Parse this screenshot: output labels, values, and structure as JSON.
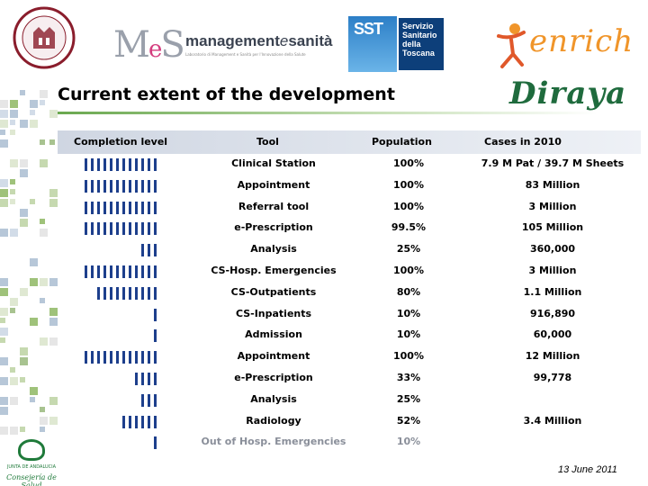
{
  "header": {
    "mes_mark": "MeS",
    "mes_title_main": "management",
    "mes_title_e": "e",
    "mes_title_end": "sanità",
    "mes_subtitle": "Laboratorio di Management e Sanità per l'Innovazione della Salute",
    "sst_box": "SST",
    "sst_text": [
      "Servizio",
      "Sanitario",
      "della",
      "Toscana"
    ],
    "enrich_word": "enrich",
    "diraya": "Diraya"
  },
  "title": "Current extent of the development",
  "table": {
    "headers": [
      "Completion level",
      "Tool",
      "Population",
      "Cases in 2010"
    ],
    "rows": [
      {
        "bars": 12,
        "tool": "Clinical Station",
        "population": "100%",
        "cases": "7.9 M Pat / 39.7 M Sheets"
      },
      {
        "bars": 12,
        "tool": "Appointment",
        "population": "100%",
        "cases": "83 Million"
      },
      {
        "bars": 12,
        "tool": "Referral tool",
        "population": "100%",
        "cases": "3 Million"
      },
      {
        "bars": 12,
        "tool": "e-Prescription",
        "population": "99.5%",
        "cases": "105 Million"
      },
      {
        "bars": 3,
        "tool": "Analysis",
        "population": "25%",
        "cases": "360,000"
      },
      {
        "bars": 12,
        "tool": "CS-Hosp. Emergencies",
        "population": "100%",
        "cases": "3 Million"
      },
      {
        "bars": 10,
        "tool": "CS-Outpatients",
        "population": "80%",
        "cases": "1.1 Million"
      },
      {
        "bars": 1,
        "tool": "CS-Inpatients",
        "population": "10%",
        "cases": "916,890"
      },
      {
        "bars": 1,
        "tool": "Admission",
        "population": "10%",
        "cases": "60,000"
      },
      {
        "bars": 12,
        "tool": "Appointment",
        "population": "100%",
        "cases": "12 Million"
      },
      {
        "bars": 4,
        "tool": "e-Prescription",
        "population": "33%",
        "cases": "99,778"
      },
      {
        "bars": 3,
        "tool": "Analysis",
        "population": "25%",
        "cases": ""
      },
      {
        "bars": 6,
        "tool": "Radiology",
        "population": "52%",
        "cases": "3.4 Million"
      },
      {
        "bars": 1,
        "tool": "Out of Hosp. Emergencies",
        "population": "10%",
        "cases": "",
        "faded": true
      }
    ]
  },
  "footer": {
    "junta_line1": "JUNTA DE ANDALUCIA",
    "junta_line2": "Consejería de Salud",
    "date": "13 June 2011"
  },
  "colors": {
    "bar": "#1d3f8c",
    "diraya_green": "#1f6b3d",
    "enrich_orange": "#f0952a",
    "sst_blue": "#0d3f7a"
  }
}
